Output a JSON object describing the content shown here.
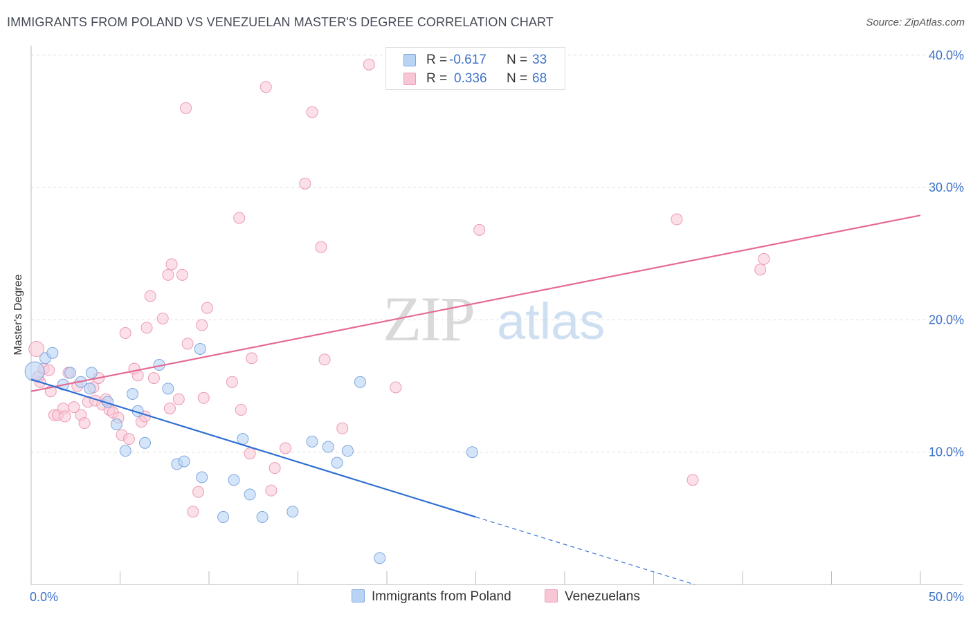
{
  "title": "IMMIGRANTS FROM POLAND VS VENEZUELAN MASTER'S DEGREE CORRELATION CHART",
  "source": "Source: ZipAtlas.com",
  "watermark": {
    "zip": "ZIP",
    "atlas": "atlas"
  },
  "legend": {
    "rows": [
      {
        "r_label": "R =",
        "r_value": "-0.617",
        "n_label": "N =",
        "n_value": "33"
      },
      {
        "r_label": "R =",
        "r_value": "0.336",
        "n_label": "N =",
        "n_value": "68"
      }
    ]
  },
  "bottom_legend": [
    "Immigrants from Poland",
    "Venezuelans"
  ],
  "colors": {
    "poland_fill": "#b9d3f5",
    "poland_stroke": "#7ea6de",
    "poland_line": "#2f6fd3",
    "venez_fill": "#f9c6d6",
    "venez_stroke": "#eb9ab5",
    "venez_line": "#e56a93",
    "tick_text": "#3d72c9",
    "grid": "#dddddd"
  },
  "chart_data": {
    "type": "scatter",
    "title": "IMMIGRANTS FROM POLAND VS VENEZUELAN MASTER'S DEGREE CORRELATION CHART",
    "xlabel": "",
    "ylabel": "Master's Degree",
    "xlim": [
      0,
      50
    ],
    "ylim": [
      0,
      40
    ],
    "x_tick_labels": [
      "0.0%",
      "50.0%"
    ],
    "y_ticks": [
      10,
      20,
      30,
      40
    ],
    "y_tick_labels": [
      "10.0%",
      "20.0%",
      "30.0%",
      "40.0%"
    ],
    "grid": true,
    "series": [
      {
        "name": "Immigrants from Poland",
        "r": -0.617,
        "n": 33,
        "trend": {
          "x0": 0,
          "y0": 15.5,
          "x1": 25.0,
          "y1": 5.1,
          "dash_to_x": 37.3,
          "dash_to_y": 0.0
        },
        "points": [
          [
            0.2,
            16.1
          ],
          [
            0.8,
            17.1
          ],
          [
            1.2,
            17.5
          ],
          [
            1.8,
            15.1
          ],
          [
            2.2,
            16.0
          ],
          [
            2.8,
            15.3
          ],
          [
            3.3,
            14.8
          ],
          [
            4.3,
            13.8
          ],
          [
            5.7,
            14.4
          ],
          [
            3.4,
            16.0
          ],
          [
            6.0,
            13.1
          ],
          [
            7.2,
            16.6
          ],
          [
            7.7,
            14.8
          ],
          [
            9.5,
            17.8
          ],
          [
            4.8,
            12.1
          ],
          [
            5.3,
            10.1
          ],
          [
            6.4,
            10.7
          ],
          [
            8.2,
            9.1
          ],
          [
            8.6,
            9.3
          ],
          [
            9.6,
            8.1
          ],
          [
            10.8,
            5.1
          ],
          [
            11.4,
            7.9
          ],
          [
            11.9,
            11.0
          ],
          [
            12.3,
            6.8
          ],
          [
            13.0,
            5.1
          ],
          [
            14.7,
            5.5
          ],
          [
            15.8,
            10.8
          ],
          [
            16.7,
            10.4
          ],
          [
            17.2,
            9.2
          ],
          [
            17.8,
            10.1
          ],
          [
            18.5,
            15.3
          ],
          [
            19.6,
            2.0
          ],
          [
            24.8,
            10.0
          ]
        ]
      },
      {
        "name": "Venezuelans",
        "r": 0.336,
        "n": 68,
        "trend": {
          "x0": 0,
          "y0": 14.6,
          "x1": 50,
          "y1": 27.9
        },
        "points": [
          [
            0.3,
            17.8
          ],
          [
            0.5,
            15.3
          ],
          [
            0.7,
            16.3
          ],
          [
            1.0,
            16.2
          ],
          [
            1.1,
            14.6
          ],
          [
            1.3,
            12.8
          ],
          [
            1.5,
            12.8
          ],
          [
            1.8,
            13.3
          ],
          [
            1.9,
            12.7
          ],
          [
            2.1,
            16.0
          ],
          [
            2.4,
            13.4
          ],
          [
            2.6,
            15.0
          ],
          [
            2.8,
            12.8
          ],
          [
            3.0,
            12.2
          ],
          [
            3.2,
            13.8
          ],
          [
            3.5,
            14.9
          ],
          [
            3.6,
            13.9
          ],
          [
            3.8,
            15.6
          ],
          [
            4.0,
            13.6
          ],
          [
            4.2,
            14.0
          ],
          [
            4.4,
            13.2
          ],
          [
            4.6,
            13.0
          ],
          [
            4.9,
            12.6
          ],
          [
            5.1,
            11.3
          ],
          [
            5.3,
            19.0
          ],
          [
            5.5,
            11.0
          ],
          [
            5.8,
            16.3
          ],
          [
            6.0,
            15.8
          ],
          [
            6.2,
            12.3
          ],
          [
            6.4,
            12.7
          ],
          [
            6.5,
            19.4
          ],
          [
            6.7,
            21.8
          ],
          [
            6.9,
            15.6
          ],
          [
            7.4,
            20.1
          ],
          [
            7.7,
            23.4
          ],
          [
            7.8,
            13.3
          ],
          [
            7.9,
            24.2
          ],
          [
            8.3,
            14.0
          ],
          [
            8.5,
            23.4
          ],
          [
            8.7,
            36.0
          ],
          [
            8.8,
            18.2
          ],
          [
            9.4,
            7.0
          ],
          [
            9.1,
            5.5
          ],
          [
            9.6,
            19.6
          ],
          [
            9.7,
            14.1
          ],
          [
            9.9,
            20.9
          ],
          [
            11.3,
            15.3
          ],
          [
            11.7,
            27.7
          ],
          [
            11.8,
            13.2
          ],
          [
            12.3,
            9.9
          ],
          [
            12.4,
            17.1
          ],
          [
            13.2,
            37.6
          ],
          [
            13.5,
            7.1
          ],
          [
            13.7,
            8.8
          ],
          [
            14.3,
            10.3
          ],
          [
            15.4,
            30.3
          ],
          [
            15.8,
            35.7
          ],
          [
            16.3,
            25.5
          ],
          [
            16.5,
            17.0
          ],
          [
            17.5,
            11.8
          ],
          [
            19.0,
            39.3
          ],
          [
            20.5,
            14.9
          ],
          [
            25.2,
            26.8
          ],
          [
            36.3,
            27.6
          ],
          [
            37.2,
            7.9
          ],
          [
            41.0,
            23.8
          ],
          [
            41.2,
            24.6
          ],
          [
            0.4,
            15.7
          ]
        ]
      }
    ]
  }
}
